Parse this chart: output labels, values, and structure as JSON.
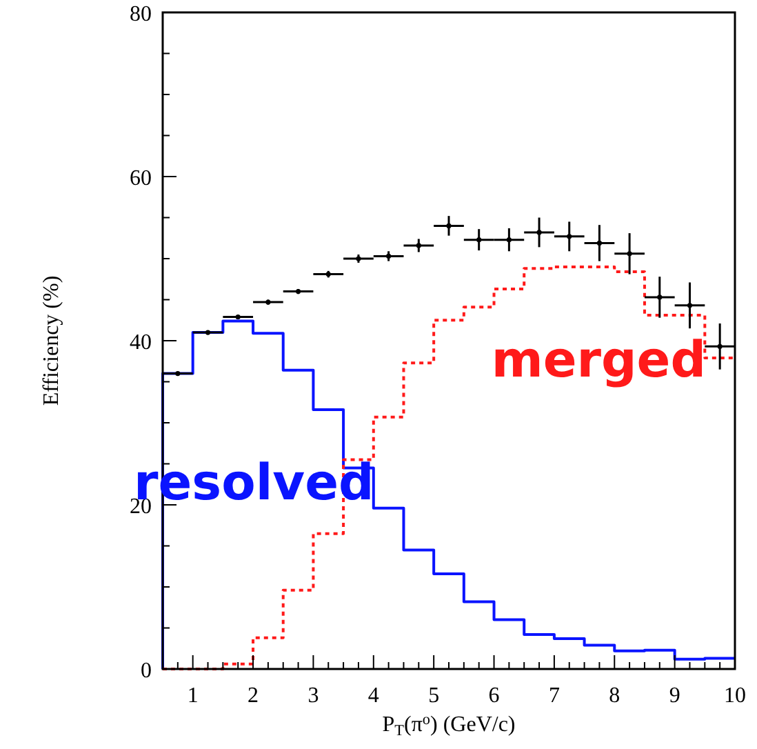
{
  "chart_data": {
    "type": "histogram",
    "xlabel": "P$_{T}$(π$^{o}$) (GeV/c)",
    "ylabel": "Efficiency (%)",
    "bins": [
      0.5,
      1,
      1.5,
      2,
      2.5,
      3,
      3.5,
      4,
      4.5,
      5,
      5.5,
      6,
      6.5,
      7,
      7.5,
      8,
      8.5,
      9,
      9.5,
      10
    ],
    "xlim": [
      0.5,
      10
    ],
    "ylim": [
      0,
      80
    ],
    "xticks": [
      {
        "value": 0.5,
        "label": null
      },
      {
        "value": 0.75,
        "label": null
      },
      1,
      {
        "value": 1.25,
        "label": null
      },
      {
        "value": 1.5,
        "label": null
      },
      {
        "value": 1.75,
        "label": null
      },
      2,
      {
        "value": 2.25,
        "label": null
      },
      {
        "value": 2.5,
        "label": null
      },
      {
        "value": 2.75,
        "label": null
      },
      3,
      {
        "value": 3.25,
        "label": null
      },
      {
        "value": 3.5,
        "label": null
      },
      {
        "value": 3.75,
        "label": null
      },
      4,
      {
        "value": 4.25,
        "label": null
      },
      {
        "value": 4.5,
        "label": null
      },
      {
        "value": 4.75,
        "label": null
      },
      5,
      {
        "value": 5.25,
        "label": null
      },
      {
        "value": 5.5,
        "label": null
      },
      {
        "value": 5.75,
        "label": null
      },
      6,
      {
        "value": 6.25,
        "label": null
      },
      {
        "value": 6.5,
        "label": null
      },
      {
        "value": 6.75,
        "label": null
      },
      7,
      {
        "value": 7.25,
        "label": null
      },
      {
        "value": 7.5,
        "label": null
      },
      {
        "value": 7.75,
        "label": null
      },
      8,
      {
        "value": 8.25,
        "label": null
      },
      {
        "value": 8.5,
        "label": null
      },
      {
        "value": 8.75,
        "label": null
      },
      9,
      {
        "value": 9.25,
        "label": null
      },
      {
        "value": 9.5,
        "label": null
      },
      {
        "value": 9.75,
        "label": null
      },
      10
    ],
    "yticks": [
      0,
      {
        "value": 5,
        "label": null
      },
      {
        "value": 10,
        "label": null
      },
      {
        "value": 15,
        "label": null
      },
      20,
      {
        "value": 25,
        "label": null
      },
      {
        "value": 30,
        "label": null
      },
      {
        "value": 35,
        "label": null
      },
      40,
      {
        "value": 45,
        "label": null
      },
      {
        "value": 50,
        "label": null
      },
      {
        "value": 55,
        "label": null
      },
      60,
      {
        "value": 65,
        "label": null
      },
      {
        "value": 70,
        "label": null
      },
      {
        "value": 75,
        "label": null
      },
      80
    ],
    "grid": false,
    "legend": false,
    "series": [
      {
        "name": "resolved",
        "color": "#0a14ff",
        "line_style": "solid",
        "values": [
          36.0,
          41.0,
          42.4,
          40.9,
          36.4,
          31.6,
          24.5,
          19.6,
          14.5,
          11.6,
          8.2,
          6.0,
          4.2,
          3.7,
          2.9,
          2.2,
          2.3,
          1.2,
          1.3
        ]
      },
      {
        "name": "merged",
        "color": "#ff1a1a",
        "line_style": "dotted",
        "values": [
          0,
          0,
          0.6,
          3.8,
          9.6,
          16.5,
          25.5,
          30.7,
          37.3,
          42.5,
          44.1,
          46.3,
          48.8,
          49.0,
          49.0,
          48.4,
          43.1,
          43.1,
          37.9
        ]
      },
      {
        "type": "scatter",
        "color": "#000000",
        "marker": "circle",
        "x": [
          0.75,
          1.25,
          1.75,
          2.25,
          2.75,
          3.25,
          3.75,
          4.25,
          4.75,
          5.25,
          5.75,
          6.25,
          6.75,
          7.25,
          7.75,
          8.25,
          8.75,
          9.25,
          9.75
        ],
        "values": [
          36.0,
          41.0,
          42.9,
          44.7,
          46.0,
          48.1,
          50.0,
          50.3,
          51.6,
          54.0,
          52.3,
          52.3,
          53.2,
          52.7,
          51.9,
          50.6,
          45.3,
          44.3,
          39.3
        ],
        "errors": [
          0.1,
          0.1,
          0.2,
          0.3,
          0.3,
          0.4,
          0.5,
          0.6,
          0.8,
          1.2,
          1.3,
          1.4,
          1.8,
          1.8,
          2.2,
          2.5,
          2.5,
          2.8,
          2.8
        ],
        "xerrors": [
          0.25,
          0.25,
          0.25,
          0.25,
          0.25,
          0.25,
          0.25,
          0.25,
          0.25,
          0.25,
          0.25,
          0.25,
          0.25,
          0.25,
          0.25,
          0.25,
          0.25,
          0.25,
          0.25
        ]
      }
    ]
  }
}
